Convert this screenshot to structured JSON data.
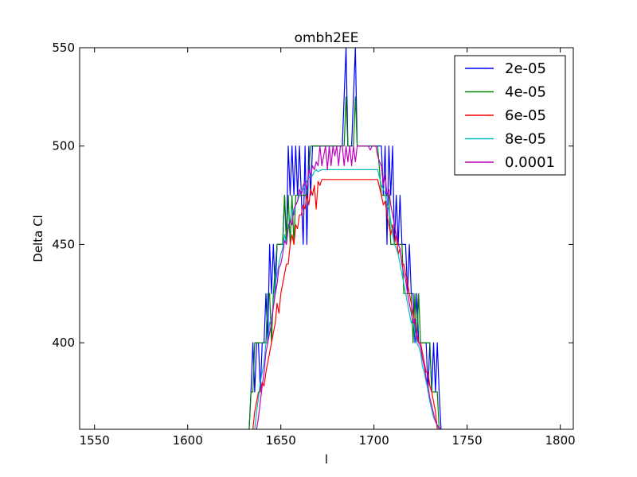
{
  "chart_data": {
    "type": "line",
    "title": "ombh2EE",
    "xlabel": "l",
    "ylabel": "Delta Cl",
    "xlim": [
      1542,
      1807
    ],
    "ylim": [
      356,
      550
    ],
    "x_ticks": [
      1550,
      1600,
      1650,
      1700,
      1750,
      1800
    ],
    "y_ticks": [
      400,
      450,
      500,
      550
    ],
    "grid": false,
    "legend_position": "top-right",
    "series": [
      {
        "name": "2e-05",
        "color": "#0000ff",
        "x": [
          1633,
          1634,
          1635,
          1636,
          1637,
          1638,
          1639,
          1640,
          1641,
          1642,
          1643,
          1644,
          1645,
          1646,
          1647,
          1648,
          1649,
          1650,
          1651,
          1652,
          1653,
          1654,
          1655,
          1656,
          1657,
          1658,
          1659,
          1660,
          1661,
          1662,
          1663,
          1664,
          1665,
          1666,
          1667,
          1668,
          1669,
          1670,
          1671,
          1672,
          1673,
          1674,
          1675,
          1676,
          1677,
          1678,
          1679,
          1680,
          1681,
          1682,
          1683,
          1684,
          1685,
          1686,
          1687,
          1688,
          1689,
          1690,
          1691,
          1692,
          1693,
          1694,
          1695,
          1696,
          1697,
          1698,
          1699,
          1700,
          1701,
          1702,
          1703,
          1704,
          1705,
          1706,
          1707,
          1708,
          1709,
          1710,
          1711,
          1712,
          1713,
          1714,
          1715,
          1716,
          1717,
          1718,
          1719,
          1720,
          1721,
          1722,
          1723,
          1724,
          1725,
          1726,
          1727,
          1728,
          1729,
          1730,
          1731,
          1732,
          1733,
          1734,
          1735,
          1736
        ],
        "values": [
          356,
          375,
          400,
          375,
          400,
          400,
          375,
          400,
          400,
          425,
          400,
          450,
          425,
          450,
          425,
          450,
          450,
          450,
          450,
          475,
          450,
          500,
          475,
          500,
          475,
          500,
          475,
          500,
          475,
          450,
          500,
          450,
          500,
          475,
          500,
          500,
          500,
          500,
          500,
          500,
          500,
          500,
          500,
          500,
          500,
          500,
          500,
          500,
          500,
          500,
          500,
          525,
          550,
          500,
          500,
          500,
          525,
          550,
          500,
          500,
          500,
          500,
          500,
          500,
          500,
          500,
          500,
          500,
          500,
          500,
          500,
          500,
          475,
          500,
          450,
          500,
          475,
          500,
          450,
          475,
          450,
          475,
          450,
          450,
          450,
          425,
          450,
          425,
          425,
          400,
          425,
          400,
          400,
          400,
          400,
          400,
          375,
          400,
          375,
          400,
          375,
          400,
          375,
          356
        ]
      },
      {
        "name": "4e-05",
        "color": "#008000",
        "x": [
          1633,
          1634,
          1635,
          1636,
          1637,
          1638,
          1640,
          1642,
          1643,
          1644,
          1645,
          1646,
          1648,
          1650,
          1651,
          1652,
          1653,
          1654,
          1655,
          1656,
          1657,
          1658,
          1659,
          1660,
          1661,
          1662,
          1663,
          1664,
          1666,
          1668,
          1670,
          1672,
          1674,
          1676,
          1678,
          1680,
          1682,
          1683,
          1684,
          1685,
          1686,
          1687,
          1688,
          1689,
          1690,
          1691,
          1692,
          1694,
          1696,
          1698,
          1700,
          1702,
          1704,
          1706,
          1707,
          1708,
          1709,
          1710,
          1711,
          1712,
          1713,
          1714,
          1715,
          1716,
          1717,
          1718,
          1719,
          1720,
          1721,
          1722,
          1723,
          1724,
          1725,
          1726,
          1728,
          1730,
          1731,
          1732,
          1733,
          1734,
          1735
        ],
        "values": [
          356,
          375,
          375,
          400,
          400,
          400,
          400,
          400,
          425,
          425,
          400,
          425,
          450,
          450,
          450,
          475,
          450,
          475,
          450,
          475,
          450,
          475,
          475,
          475,
          475,
          475,
          475,
          475,
          500,
          500,
          500,
          500,
          500,
          500,
          500,
          500,
          500,
          500,
          500,
          525,
          500,
          500,
          500,
          500,
          525,
          500,
          500,
          500,
          500,
          500,
          500,
          500,
          475,
          475,
          475,
          475,
          450,
          450,
          450,
          450,
          450,
          450,
          450,
          425,
          425,
          425,
          425,
          425,
          400,
          425,
          400,
          425,
          400,
          400,
          400,
          400,
          375,
          375,
          375,
          375,
          356
        ]
      },
      {
        "name": "6e-05",
        "color": "#ff0000",
        "x": [
          1635,
          1636,
          1637,
          1638,
          1639,
          1640,
          1641,
          1642,
          1643,
          1644,
          1645,
          1646,
          1647,
          1648,
          1649,
          1650,
          1651,
          1652,
          1653,
          1654,
          1655,
          1656,
          1657,
          1658,
          1659,
          1660,
          1661,
          1662,
          1663,
          1664,
          1665,
          1666,
          1667,
          1668,
          1669,
          1670,
          1671,
          1672,
          1674,
          1676,
          1678,
          1680,
          1682,
          1684,
          1686,
          1688,
          1690,
          1692,
          1694,
          1696,
          1698,
          1700,
          1702,
          1704,
          1705,
          1706,
          1707,
          1708,
          1709,
          1710,
          1711,
          1712,
          1713,
          1714,
          1715,
          1716,
          1717,
          1718,
          1719,
          1720,
          1721,
          1722,
          1723,
          1724,
          1725,
          1726,
          1727,
          1728,
          1729,
          1730,
          1731,
          1732,
          1733,
          1734
        ],
        "values": [
          356,
          365,
          370,
          375,
          375,
          380,
          378,
          385,
          390,
          395,
          400,
          405,
          410,
          420,
          415,
          425,
          430,
          435,
          440,
          440,
          450,
          455,
          450,
          460,
          458,
          465,
          465,
          470,
          468,
          475,
          470,
          478,
          475,
          480,
          468,
          482,
          480,
          483,
          483,
          483,
          483,
          483,
          483,
          483,
          483,
          483,
          483,
          483,
          483,
          483,
          483,
          483,
          483,
          475,
          470,
          472,
          465,
          460,
          455,
          460,
          450,
          455,
          445,
          448,
          440,
          440,
          435,
          430,
          425,
          420,
          415,
          410,
          405,
          400,
          400,
          395,
          390,
          385,
          385,
          378,
          375,
          370,
          365,
          356
        ]
      },
      {
        "name": "8e-05",
        "color": "#00bfbf",
        "x": [
          1636,
          1637,
          1638,
          1639,
          1640,
          1641,
          1642,
          1643,
          1644,
          1645,
          1646,
          1647,
          1648,
          1649,
          1650,
          1651,
          1652,
          1653,
          1654,
          1655,
          1656,
          1657,
          1658,
          1659,
          1660,
          1661,
          1662,
          1663,
          1664,
          1665,
          1666,
          1667,
          1668,
          1669,
          1670,
          1672,
          1674,
          1676,
          1678,
          1680,
          1682,
          1684,
          1686,
          1688,
          1690,
          1692,
          1694,
          1696,
          1698,
          1700,
          1702,
          1704,
          1705,
          1706,
          1707,
          1708,
          1709,
          1710,
          1711,
          1712,
          1713,
          1714,
          1715,
          1716,
          1717,
          1718,
          1719,
          1720,
          1721,
          1722,
          1723,
          1724,
          1725,
          1726,
          1727,
          1728,
          1729,
          1730,
          1731,
          1732,
          1733,
          1734,
          1735
        ],
        "values": [
          356,
          365,
          372,
          380,
          385,
          390,
          400,
          400,
          410,
          412,
          420,
          430,
          435,
          440,
          445,
          448,
          455,
          450,
          460,
          462,
          468,
          465,
          470,
          472,
          475,
          478,
          478,
          480,
          482,
          484,
          486,
          485,
          487,
          488,
          487,
          488,
          488,
          488,
          488,
          488,
          488,
          488,
          488,
          488,
          488,
          488,
          488,
          488,
          488,
          488,
          488,
          480,
          478,
          476,
          470,
          468,
          462,
          455,
          450,
          448,
          445,
          440,
          435,
          430,
          425,
          420,
          415,
          410,
          412,
          405,
          400,
          398,
          395,
          388,
          385,
          380,
          376,
          370,
          366,
          362,
          360,
          358,
          356
        ]
      },
      {
        "name": "0.0001",
        "color": "#bf00bf",
        "x": [
          1637,
          1638,
          1639,
          1640,
          1641,
          1642,
          1643,
          1644,
          1645,
          1646,
          1647,
          1648,
          1649,
          1650,
          1651,
          1652,
          1653,
          1654,
          1655,
          1656,
          1657,
          1658,
          1659,
          1660,
          1661,
          1662,
          1663,
          1664,
          1665,
          1666,
          1667,
          1668,
          1669,
          1670,
          1671,
          1672,
          1673,
          1674,
          1675,
          1676,
          1677,
          1678,
          1679,
          1680,
          1681,
          1682,
          1683,
          1684,
          1685,
          1686,
          1687,
          1688,
          1689,
          1690,
          1691,
          1692,
          1693,
          1694,
          1695,
          1696,
          1697,
          1698,
          1699,
          1700,
          1701,
          1702,
          1703,
          1704,
          1705,
          1706,
          1707,
          1708,
          1709,
          1710,
          1711,
          1712,
          1713,
          1714,
          1715,
          1716,
          1717,
          1718,
          1719,
          1720,
          1721,
          1722,
          1723,
          1724,
          1725,
          1726,
          1727,
          1728,
          1729,
          1730,
          1731,
          1732,
          1733,
          1734,
          1735,
          1736
        ],
        "values": [
          356,
          362,
          370,
          378,
          385,
          395,
          400,
          405,
          410,
          418,
          425,
          430,
          438,
          440,
          445,
          452,
          450,
          458,
          462,
          460,
          468,
          470,
          472,
          478,
          475,
          480,
          482,
          478,
          488,
          485,
          490,
          488,
          492,
          490,
          500,
          490,
          495,
          500,
          488,
          500,
          490,
          500,
          495,
          500,
          490,
          500,
          500,
          490,
          500,
          492,
          500,
          490,
          500,
          492,
          500,
          500,
          500,
          500,
          500,
          500,
          500,
          498,
          500,
          500,
          500,
          495,
          492,
          490,
          480,
          485,
          475,
          478,
          470,
          465,
          460,
          455,
          450,
          448,
          440,
          435,
          432,
          425,
          420,
          415,
          410,
          412,
          402,
          400,
          398,
          392,
          388,
          382,
          378,
          372,
          368,
          364,
          360,
          358,
          357,
          356
        ]
      }
    ]
  }
}
